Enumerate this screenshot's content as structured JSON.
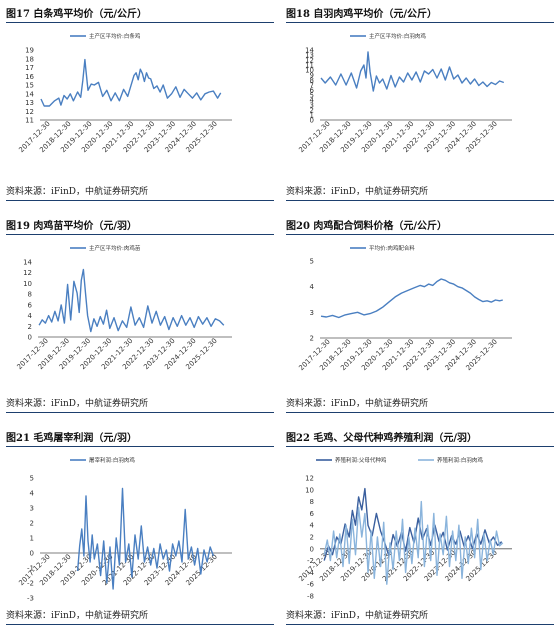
{
  "panels": [
    {
      "title": "图17 白条鸡平均价（元/公斤）",
      "source": "资料来源：iFinD，中航证券研究所",
      "chart_data": {
        "type": "line",
        "ylim": [
          11,
          19
        ],
        "yticks": [
          11,
          12,
          13,
          14,
          15,
          16,
          17,
          18,
          19
        ],
        "xlim": [
          0,
          9
        ],
        "xticks": [
          "2017-12-30",
          "2018-12-30",
          "2019-12-30",
          "2020-12-30",
          "2021-12-30",
          "2022-12-30",
          "2023-12-30",
          "2024-12-30",
          "2025-12-30"
        ],
        "series": [
          {
            "name": "主产区平均价:白条鸡",
            "color": "#4a7fc1",
            "x": [
              0.05,
              0.2,
              0.45,
              0.7,
              0.9,
              1.0,
              1.15,
              1.3,
              1.45,
              1.6,
              1.8,
              1.95,
              2.05,
              2.15,
              2.2,
              2.3,
              2.45,
              2.6,
              2.8,
              3.0,
              3.2,
              3.4,
              3.6,
              3.8,
              4.0,
              4.2,
              4.4,
              4.5,
              4.6,
              4.7,
              4.8,
              4.9,
              5.0,
              5.1,
              5.2,
              5.3,
              5.45,
              5.6,
              5.75,
              5.9,
              6.1,
              6.3,
              6.5,
              6.7,
              6.9,
              7.1,
              7.3,
              7.5,
              7.7,
              7.9,
              8.1,
              8.3,
              8.5,
              8.65
            ],
            "y": [
              13.4,
              12.6,
              12.6,
              13.2,
              13.5,
              12.7,
              13.8,
              13.4,
              14.0,
              13.2,
              14.2,
              13.6,
              15.5,
              17.9,
              16.6,
              14.4,
              15.1,
              15.0,
              15.3,
              13.7,
              14.4,
              13.2,
              14.1,
              13.2,
              14.5,
              13.7,
              15.3,
              16.1,
              16.4,
              15.6,
              16.8,
              16.3,
              15.4,
              16.4,
              15.8,
              15.7,
              14.6,
              14.9,
              14.2,
              15.0,
              13.5,
              14.0,
              14.8,
              13.6,
              14.5,
              14.0,
              13.5,
              14.1,
              13.3,
              14.0,
              14.2,
              14.3,
              13.5,
              14.1
            ]
          }
        ]
      }
    },
    {
      "title": "图18 自羽肉鸡平均价（元/公斤）",
      "source": "资料来源：iFinD，中航证券研究所",
      "chart_data": {
        "type": "line",
        "ylim": [
          0,
          14
        ],
        "yticks": [
          0,
          1,
          2,
          3,
          4,
          5,
          6,
          7,
          8,
          9,
          10,
          11,
          12,
          13,
          14
        ],
        "xlim": [
          0,
          9
        ],
        "xticks": [
          "2017-12-30",
          "2018-12-30",
          "2019-12-30",
          "2020-12-30",
          "2021-12-30",
          "2022-12-30",
          "2023-12-30",
          "2024-12-30",
          "2025-12-30"
        ],
        "series": [
          {
            "name": "主产区平均价:白羽肉鸡",
            "color": "#4a7fc1",
            "x": [
              0.05,
              0.25,
              0.5,
              0.75,
              1.0,
              1.25,
              1.5,
              1.75,
              1.95,
              2.1,
              2.2,
              2.3,
              2.4,
              2.55,
              2.7,
              2.85,
              3.0,
              3.2,
              3.4,
              3.6,
              3.8,
              4.0,
              4.2,
              4.4,
              4.6,
              4.8,
              5.0,
              5.2,
              5.4,
              5.6,
              5.8,
              6.0,
              6.2,
              6.4,
              6.6,
              6.8,
              7.0,
              7.2,
              7.4,
              7.6,
              7.8,
              8.0,
              8.2,
              8.4,
              8.6,
              8.8
            ],
            "y": [
              8.4,
              7.4,
              8.6,
              7.0,
              9.2,
              7.0,
              9.4,
              6.4,
              9.8,
              11.0,
              8.4,
              13.6,
              9.6,
              5.8,
              8.8,
              7.4,
              8.2,
              6.2,
              8.9,
              6.6,
              8.6,
              7.6,
              9.4,
              8.0,
              9.6,
              7.6,
              9.8,
              9.2,
              10.1,
              8.4,
              10.2,
              8.0,
              10.6,
              8.2,
              9.0,
              7.4,
              8.4,
              7.2,
              8.2,
              6.9,
              7.6,
              6.7,
              7.5,
              7.1,
              7.8,
              7.5
            ]
          }
        ]
      }
    },
    {
      "title": "图19 肉鸡苗平均价（元/羽）",
      "source": "资料来源：iFinD，中航证券研究所",
      "chart_data": {
        "type": "line",
        "ylim": [
          0,
          14
        ],
        "yticks": [
          0,
          2,
          4,
          6,
          8,
          10,
          12,
          14
        ],
        "xlim": [
          0,
          9
        ],
        "xticks": [
          "2017-12-30",
          "2018-12-30",
          "2019-12-30",
          "2020-12-30",
          "2021-12-30",
          "2022-12-30",
          "2023-12-30",
          "2024-12-30",
          "2025-12-30"
        ],
        "series": [
          {
            "name": "主产区平均价:肉鸡苗",
            "color": "#4a7fc1",
            "x": [
              0.05,
              0.2,
              0.35,
              0.5,
              0.65,
              0.8,
              0.95,
              1.1,
              1.25,
              1.4,
              1.55,
              1.7,
              1.85,
              1.95,
              2.05,
              2.15,
              2.25,
              2.35,
              2.5,
              2.65,
              2.8,
              2.95,
              3.1,
              3.25,
              3.4,
              3.6,
              3.8,
              4.0,
              4.2,
              4.4,
              4.6,
              4.8,
              5.0,
              5.2,
              5.4,
              5.6,
              5.8,
              6.0,
              6.2,
              6.4,
              6.6,
              6.8,
              7.0,
              7.2,
              7.4,
              7.6,
              7.8,
              8.0,
              8.2,
              8.4,
              8.6,
              8.8
            ],
            "y": [
              2.2,
              3.2,
              2.6,
              4.0,
              2.8,
              4.8,
              3.0,
              6.0,
              2.6,
              9.8,
              3.2,
              10.4,
              8.2,
              4.6,
              10.6,
              12.6,
              8.2,
              4.0,
              1.0,
              3.4,
              2.0,
              3.8,
              2.4,
              5.0,
              1.6,
              3.6,
              1.2,
              3.0,
              1.8,
              5.6,
              2.2,
              3.6,
              1.8,
              5.8,
              2.6,
              4.8,
              2.2,
              3.8,
              1.4,
              3.6,
              2.0,
              4.0,
              2.2,
              3.6,
              1.8,
              3.8,
              2.4,
              3.6,
              2.0,
              3.4,
              3.0,
              2.2
            ]
          }
        ]
      }
    },
    {
      "title": "图20 肉鸡配合饲料价格（元/公斤）",
      "source": "资料来源：iFinD，中航证券研究所",
      "chart_data": {
        "type": "line",
        "ylim": [
          2,
          5
        ],
        "yticks": [
          2,
          3,
          4,
          5
        ],
        "xlim": [
          0,
          9
        ],
        "xticks": [
          "2017-12-30",
          "2018-12-30",
          "2019-12-30",
          "2020-12-30",
          "2021-12-30",
          "2022-12-30",
          "2023-12-30",
          "2024-12-30",
          "2025-12-30"
        ],
        "series": [
          {
            "name": "平均价:肉鸡配合料",
            "color": "#4a7fc1",
            "x": [
              0.05,
              0.3,
              0.6,
              0.9,
              1.2,
              1.5,
              1.8,
              2.1,
              2.4,
              2.7,
              3.0,
              3.3,
              3.6,
              3.9,
              4.2,
              4.5,
              4.8,
              5.0,
              5.2,
              5.4,
              5.6,
              5.8,
              6.0,
              6.2,
              6.4,
              6.6,
              6.8,
              7.0,
              7.2,
              7.4,
              7.6,
              7.8,
              8.0,
              8.2,
              8.4,
              8.6,
              8.75
            ],
            "y": [
              2.85,
              2.82,
              2.88,
              2.8,
              2.9,
              2.95,
              3.0,
              2.9,
              2.95,
              3.05,
              3.2,
              3.4,
              3.6,
              3.75,
              3.85,
              3.95,
              4.05,
              4.0,
              4.1,
              4.05,
              4.2,
              4.3,
              4.25,
              4.15,
              4.1,
              4.0,
              3.95,
              3.85,
              3.75,
              3.6,
              3.5,
              3.42,
              3.45,
              3.4,
              3.48,
              3.45,
              3.48
            ]
          }
        ]
      }
    },
    {
      "title": "图21 毛鸡屠宰利润（元/羽）",
      "source": "资料来源：iFinD，中航证券研究所",
      "chart_data": {
        "type": "line",
        "ylim": [
          -3,
          5
        ],
        "yticks": [
          -3,
          -2,
          -1,
          0,
          1,
          2,
          3,
          4,
          5
        ],
        "xlim": [
          0,
          9
        ],
        "xticks": [
          "2017-12-30",
          "2018-12-30",
          "2019-12-30",
          "2020-12-30",
          "2021-12-30",
          "2022-12-30",
          "2023-12-30",
          "2024-12-30",
          "2025-12-30"
        ],
        "series": [
          {
            "name": "屠宰利润:白羽肉鸡",
            "color": "#4a7fc1",
            "x": [
              1.8,
              1.9,
              2.0,
              2.1,
              2.2,
              2.3,
              2.4,
              2.5,
              2.6,
              2.75,
              2.9,
              3.05,
              3.2,
              3.35,
              3.5,
              3.65,
              3.8,
              3.95,
              4.1,
              4.25,
              4.4,
              4.55,
              4.7,
              4.85,
              5.0,
              5.15,
              5.3,
              5.45,
              5.6,
              5.75,
              5.9,
              6.05,
              6.2,
              6.35,
              6.5,
              6.65,
              6.8,
              6.95,
              7.1,
              7.25,
              7.4,
              7.55,
              7.7,
              7.85,
              8.0,
              8.15,
              8.3
            ],
            "y": [
              -1.2,
              0.5,
              1.6,
              -0.2,
              3.8,
              0.8,
              -0.6,
              1.2,
              -0.4,
              0.6,
              -1.5,
              0.8,
              -2.0,
              0.4,
              -2.4,
              1.0,
              -0.8,
              4.3,
              -0.6,
              0.6,
              -1.6,
              1.2,
              -0.4,
              1.8,
              -0.6,
              0.4,
              -0.8,
              0.3,
              -1.0,
              0.6,
              -0.4,
              0.2,
              -1.2,
              0.6,
              -0.2,
              0.8,
              -0.6,
              2.9,
              -0.4,
              0.4,
              -0.8,
              0.3,
              -1.4,
              0.2,
              -0.6,
              0.4,
              -0.2
            ]
          }
        ]
      }
    },
    {
      "title": "图22 毛鸡、父母代种鸡养殖利润（元/羽）",
      "source": "资料来源：iFinD，中航证券研究所",
      "chart_data": {
        "type": "line",
        "ylim": [
          -8,
          12
        ],
        "yticks": [
          -8,
          -6,
          -4,
          -2,
          0,
          2,
          4,
          6,
          8,
          10,
          12
        ],
        "xlim": [
          0,
          9
        ],
        "xticks": [
          "2017-12-30",
          "2018-12-30",
          "2019-12-30",
          "2020-12-30",
          "2021-12-30",
          "2022-12-30",
          "2023-12-30",
          "2024-12-30",
          "2025-12-30"
        ],
        "series": [
          {
            "name": "养殖利润:父母代种鸡",
            "color": "#3a5f9e",
            "x": [
              0.2,
              0.4,
              0.6,
              0.8,
              1.0,
              1.2,
              1.4,
              1.55,
              1.7,
              1.85,
              2.0,
              2.15,
              2.3,
              2.5,
              2.7,
              2.9,
              3.1,
              3.3,
              3.5,
              3.7,
              3.9,
              4.1,
              4.3,
              4.5,
              4.7,
              4.9,
              5.1,
              5.3,
              5.5,
              5.7,
              5.9,
              6.1,
              6.3,
              6.5,
              6.7,
              6.9,
              7.1,
              7.3,
              7.5,
              7.7,
              7.9,
              8.1,
              8.3,
              8.5,
              8.7
            ],
            "y": [
              -2.0,
              0.5,
              -1.0,
              2.0,
              0.8,
              4.2,
              2.0,
              6.5,
              4.0,
              8.8,
              6.6,
              10.2,
              4.0,
              2.2,
              6.0,
              3.0,
              1.0,
              -1.2,
              2.4,
              0.4,
              2.8,
              -0.4,
              3.6,
              1.0,
              5.2,
              1.6,
              3.4,
              0.6,
              4.0,
              1.2,
              2.8,
              -0.2,
              2.2,
              0.8,
              3.0,
              0.4,
              2.2,
              0.0,
              2.6,
              0.8,
              3.2,
              1.0,
              2.0,
              0.6,
              1.2
            ]
          },
          {
            "name": "养殖利润:白羽肉鸡",
            "color": "#8ab4dc",
            "x": [
              0.2,
              0.35,
              0.5,
              0.65,
              0.8,
              0.95,
              1.1,
              1.25,
              1.4,
              1.55,
              1.7,
              1.85,
              2.0,
              2.15,
              2.3,
              2.45,
              2.6,
              2.75,
              2.9,
              3.05,
              3.2,
              3.35,
              3.5,
              3.65,
              3.8,
              3.95,
              4.1,
              4.25,
              4.4,
              4.55,
              4.7,
              4.85,
              5.0,
              5.15,
              5.3,
              5.45,
              5.6,
              5.75,
              5.9,
              6.05,
              6.2,
              6.35,
              6.5,
              6.65,
              6.8,
              6.95,
              7.1,
              7.25,
              7.4,
              7.55,
              7.7,
              7.85,
              8.0,
              8.15,
              8.3,
              8.45,
              8.6,
              8.75
            ],
            "y": [
              -1.0,
              1.5,
              -2.0,
              3.0,
              -1.5,
              2.5,
              -3.0,
              4.0,
              -2.5,
              5.0,
              -1.0,
              7.0,
              2.0,
              6.0,
              -4.0,
              3.0,
              -5.0,
              2.0,
              -3.0,
              4.5,
              -6.0,
              1.0,
              -3.5,
              3.0,
              -2.0,
              5.0,
              -4.0,
              2.0,
              -2.5,
              3.5,
              -1.5,
              8.0,
              -3.0,
              4.0,
              -2.0,
              6.0,
              -4.5,
              2.5,
              -1.0,
              5.5,
              -3.0,
              3.0,
              -2.0,
              4.0,
              -5.0,
              2.0,
              -2.5,
              3.5,
              -1.5,
              5.0,
              -3.5,
              2.5,
              -2.0,
              1.5,
              -1.0,
              3.0,
              0.5,
              1.0
            ]
          }
        ]
      }
    }
  ]
}
